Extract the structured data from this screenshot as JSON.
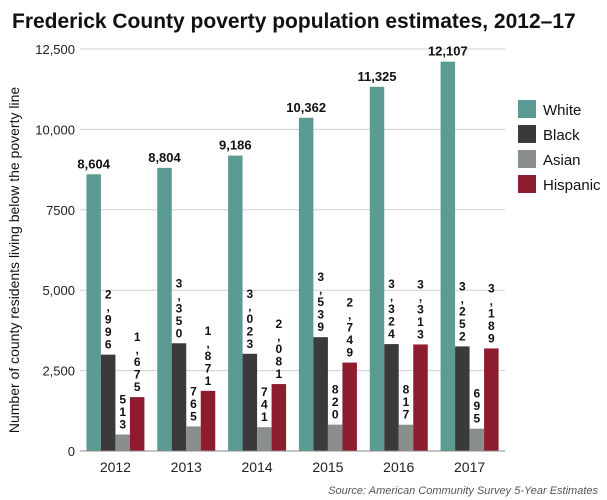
{
  "chart_data": {
    "type": "bar",
    "title": "Frederick County poverty population estimates, 2012–17",
    "ylabel": "Number of county residents living below the poverty line",
    "xlabel": "",
    "ylim": [
      0,
      12500
    ],
    "yticks": [
      0,
      2500,
      5000,
      7500,
      10000,
      12500
    ],
    "ytick_labels": [
      "0",
      "2,500",
      "5,000",
      "7500",
      "10,000",
      "12,500"
    ],
    "grid": true,
    "legend_position": "right",
    "categories": [
      "2012",
      "2013",
      "2014",
      "2015",
      "2016",
      "2017"
    ],
    "series": [
      {
        "name": "White",
        "color": "#5b9b93",
        "values": [
          8604,
          8804,
          9186,
          10362,
          11325,
          12107
        ],
        "labels": [
          "8,604",
          "8,804",
          "9,186",
          "10,362",
          "11,325",
          "12,107"
        ]
      },
      {
        "name": "Black",
        "color": "#3a3a3a",
        "values": [
          2996,
          3350,
          3023,
          3539,
          3324,
          3252
        ],
        "labels": [
          "2,996",
          "3,350",
          "3,023",
          "3,539",
          "3,324",
          "3,252"
        ]
      },
      {
        "name": "Asian",
        "color": "#8a8f8d",
        "values": [
          513,
          765,
          741,
          820,
          817,
          695
        ],
        "labels": [
          "513",
          "765",
          "741",
          "820",
          "817",
          "695"
        ]
      },
      {
        "name": "Hispanic",
        "color": "#8c1c2e",
        "values": [
          1675,
          1871,
          2081,
          2749,
          3313,
          3189
        ],
        "labels": [
          "1,675",
          "1,871",
          "2,081",
          "2,749",
          "3,313",
          "3,189"
        ]
      }
    ],
    "source": "Source: American Community Survey 5-Year Estimates"
  }
}
